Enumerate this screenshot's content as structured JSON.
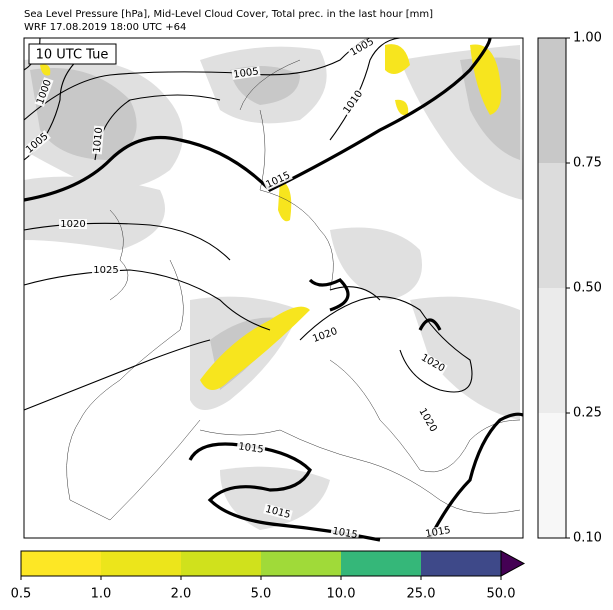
{
  "header": {
    "title": "Sea Level Pressure [hPa], Mid-Level Cloud Cover, Total prec. in the last hour [mm]",
    "subtitle": "WRF 17.08.2019 18:00 UTC +64"
  },
  "map": {
    "time_label": "10 UTC Tue",
    "isobar_labels": [
      "1005",
      "1005",
      "1000",
      "1005",
      "1010",
      "1010",
      "1015",
      "1020",
      "1025",
      "1020",
      "1020",
      "1020",
      "1015",
      "1015",
      "1015",
      "1015"
    ]
  },
  "cloud_colorbar": {
    "ticks": [
      "0.10",
      "0.25",
      "0.50",
      "0.75",
      "1.00"
    ]
  },
  "precip_colorbar": {
    "ticks": [
      "0.5",
      "1.0",
      "2.0",
      "5.0",
      "10.0",
      "25.0",
      "50.0"
    ]
  }
}
